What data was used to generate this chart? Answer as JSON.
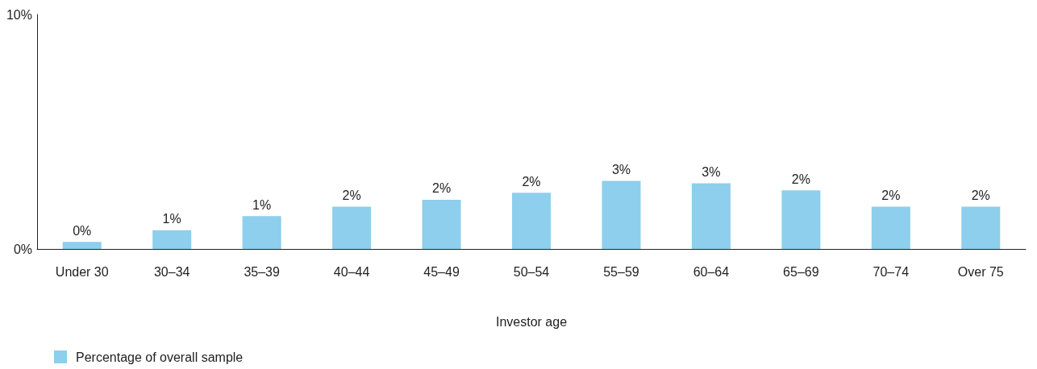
{
  "chart_data": {
    "type": "bar",
    "xlabel": "Investor age",
    "categories": [
      "Under 30",
      "30–34",
      "35–39",
      "40–44",
      "45–49",
      "50–54",
      "55–59",
      "60–64",
      "65–69",
      "70–74",
      "Over 75"
    ],
    "series": [
      {
        "name": "Percentage of overall sample",
        "color": "#8dcfec",
        "values": [
          0.3,
          0.8,
          1.4,
          1.8,
          2.1,
          2.4,
          2.9,
          2.8,
          2.5,
          1.8,
          1.8
        ],
        "value_labels": [
          "0%",
          "1%",
          "1%",
          "2%",
          "2%",
          "2%",
          "3%",
          "3%",
          "2%",
          "2%",
          "2%"
        ]
      }
    ],
    "ylim": [
      0,
      10
    ],
    "yticks": [
      {
        "value": 0,
        "label": "0%"
      },
      {
        "value": 10,
        "label": "10%"
      }
    ],
    "grid": false,
    "legend": "bottom left"
  }
}
